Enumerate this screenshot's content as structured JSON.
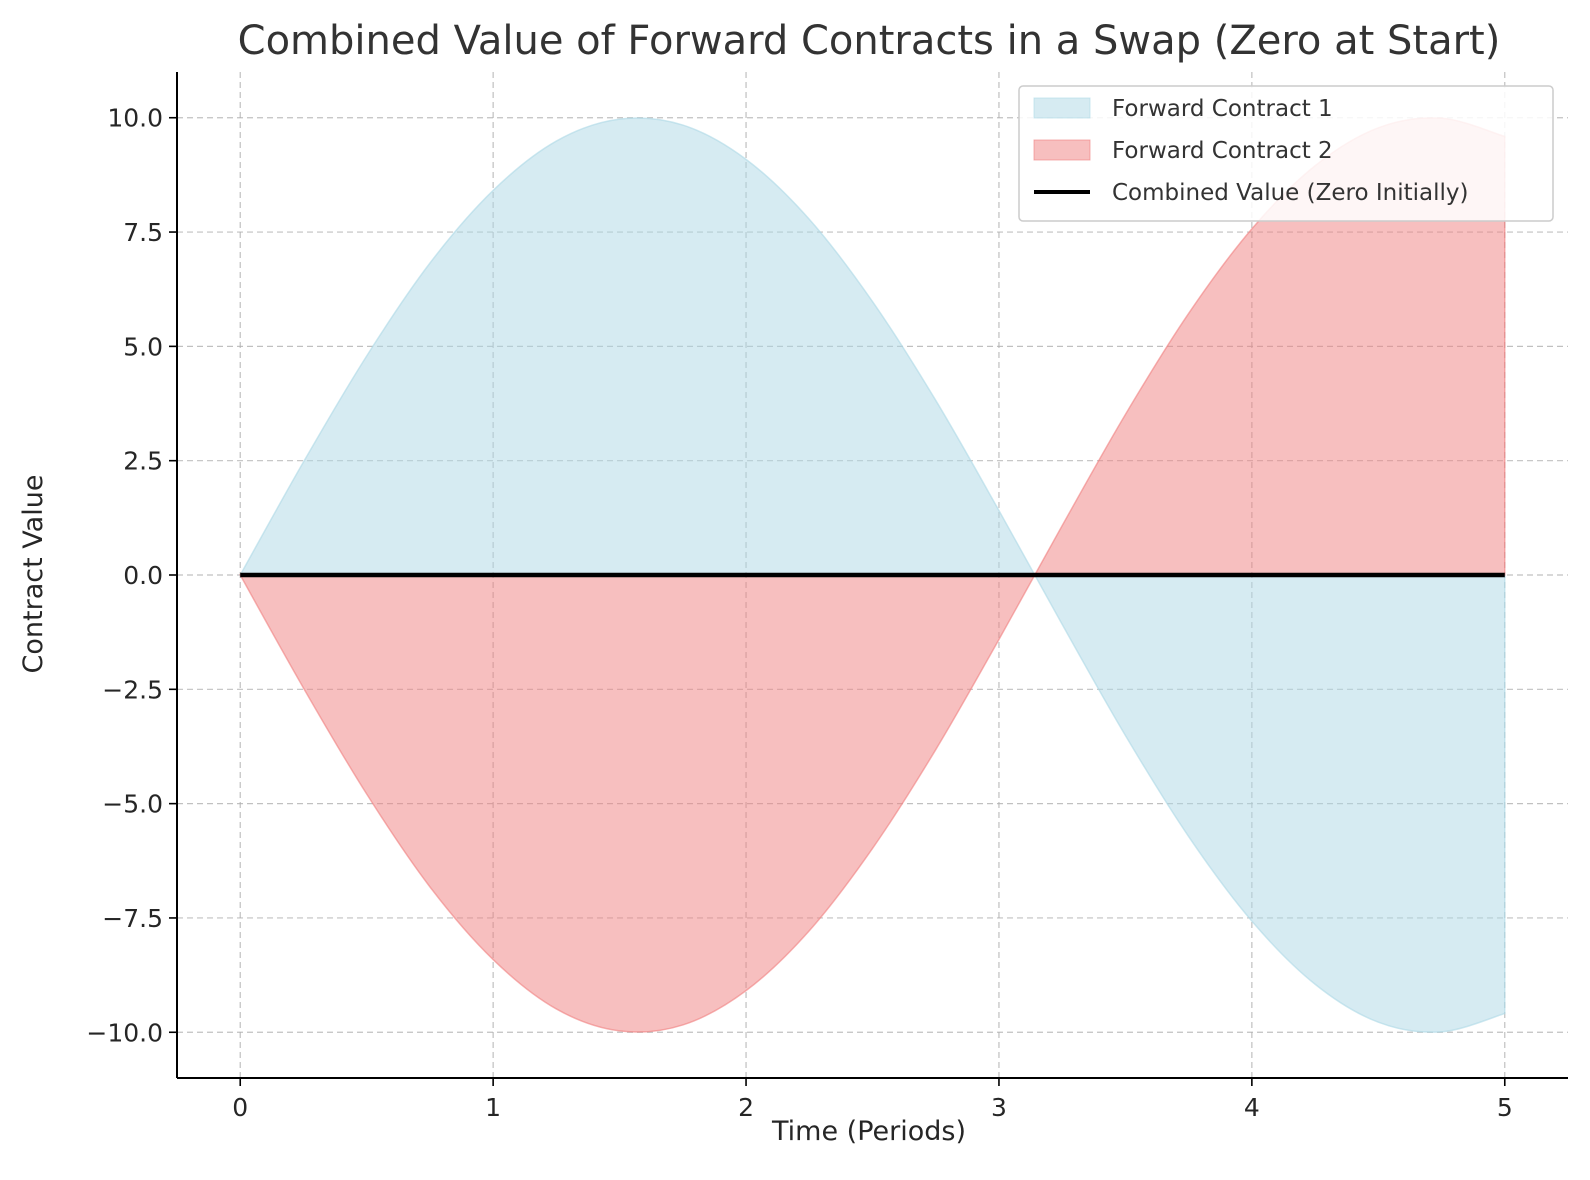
{
  "chart_data": {
    "type": "area",
    "title": "Combined Value of Forward Contracts in a Swap (Zero at Start)",
    "xlabel": "Time (Periods)",
    "ylabel": "Contract Value",
    "xlim": [
      -0.25,
      5.25
    ],
    "ylim": [
      -11,
      11
    ],
    "xticks": [
      0,
      1,
      2,
      3,
      4,
      5
    ],
    "xtick_labels": [
      "0",
      "1",
      "2",
      "3",
      "4",
      "5"
    ],
    "yticks": [
      10,
      7.5,
      5,
      2.5,
      0,
      -2.5,
      -5,
      -7.5,
      -10
    ],
    "ytick_labels": [
      "10.0",
      "7.5",
      "5.0",
      "2.5",
      "0.0",
      "−2.5",
      "−5.0",
      "−7.5",
      "−10.0"
    ],
    "grid": true,
    "legend_position": "top-right",
    "x": [
      0,
      0.25,
      0.5,
      0.75,
      1,
      1.25,
      1.5,
      1.75,
      2,
      2.25,
      2.5,
      2.75,
      3,
      3.25,
      3.5,
      3.75,
      4,
      4.25,
      4.5,
      4.75,
      5
    ],
    "series": [
      {
        "name": "Forward Contract 1",
        "kind": "fill",
        "color": "#add8e6",
        "values": [
          0,
          2.47,
          4.79,
          6.82,
          8.41,
          9.49,
          9.97,
          9.84,
          9.09,
          7.78,
          5.98,
          3.82,
          1.41,
          -1.08,
          -3.51,
          -5.72,
          -7.57,
          -8.95,
          -9.78,
          -9.99,
          -9.59
        ]
      },
      {
        "name": "Forward Contract 2",
        "kind": "fill",
        "color": "#f08080",
        "values": [
          0,
          -2.47,
          -4.79,
          -6.82,
          -8.41,
          -9.49,
          -9.97,
          -9.84,
          -9.09,
          -7.78,
          -5.98,
          -3.82,
          -1.41,
          1.08,
          3.51,
          5.72,
          7.57,
          8.95,
          9.78,
          9.99,
          9.59
        ]
      },
      {
        "name": "Combined Value (Zero Initially)",
        "kind": "line",
        "color": "#000000",
        "values": [
          0,
          0,
          0,
          0,
          0,
          0,
          0,
          0,
          0,
          0,
          0,
          0,
          0,
          0,
          0,
          0,
          0,
          0,
          0,
          0,
          0
        ]
      }
    ]
  }
}
